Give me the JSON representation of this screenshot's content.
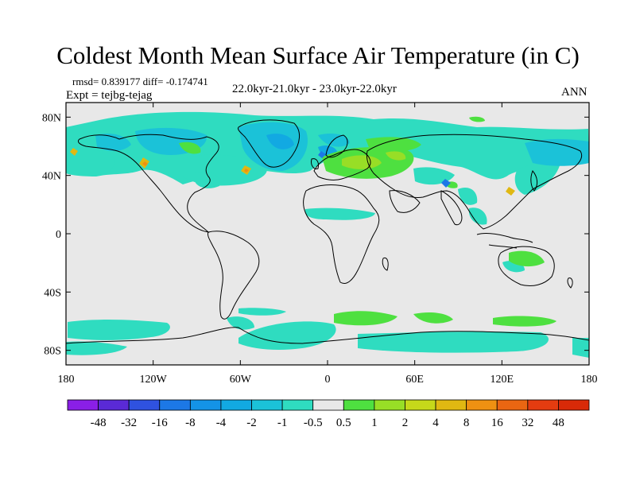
{
  "map": {
    "title": "Coldest Month Mean Surface Air Temperature (in C)",
    "stats_line": "rmsd= 0.839177 diff= -0.174741",
    "experiment": "Expt = tejbg-tejag",
    "period": "22.0kyr-21.0kyr - 23.0kyr-22.0kyr",
    "season": "ANN",
    "projection": "cylindrical-equidistant",
    "lon_range": [
      -180,
      180
    ],
    "lat_range": [
      -90,
      90
    ],
    "lon_ticks": [
      "180",
      "120W",
      "60W",
      "0",
      "60E",
      "120E",
      "180"
    ],
    "lat_ticks": [
      "80N",
      "40N",
      "0",
      "40S",
      "80S"
    ]
  },
  "colorbar": {
    "labels": [
      "-48",
      "-32",
      "-16",
      "-8",
      "-4",
      "-2",
      "-1",
      "-0.5",
      "0.5",
      "1",
      "2",
      "4",
      "8",
      "16",
      "32",
      "48"
    ],
    "colors": [
      "#8a1fe6",
      "#5a2ad6",
      "#2f52e0",
      "#1c78e6",
      "#1493e6",
      "#12a9e2",
      "#1bc2d8",
      "#2fdcc0",
      "#e8e8e8",
      "#4ee040",
      "#98de26",
      "#c6d81a",
      "#e0b812",
      "#ee9112",
      "#ea6612",
      "#e43c10",
      "#d82a08"
    ]
  },
  "style": {
    "background_fill": "#e8e8e8",
    "coastline": "#000000"
  }
}
